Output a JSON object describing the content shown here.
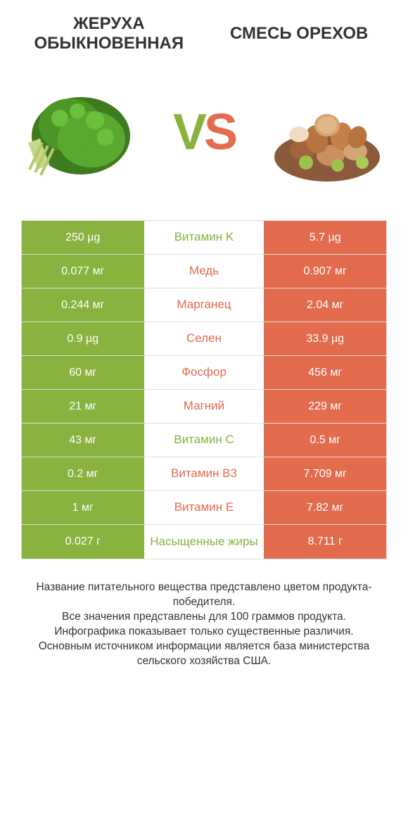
{
  "header": {
    "left_title": "ЖЕРУХА ОБЫКНОВЕННАЯ",
    "right_title": "СМЕСЬ ОРЕХОВ"
  },
  "vs": {
    "v": "V",
    "s": "S"
  },
  "colors": {
    "green": "#8ab23f",
    "orange": "#e36b4e",
    "border": "#dddddd",
    "text": "#333333",
    "white": "#ffffff"
  },
  "table": {
    "rows": [
      {
        "left": "250 µg",
        "mid": "Витамин K",
        "right": "5.7 µg",
        "winner": "left"
      },
      {
        "left": "0.077 мг",
        "mid": "Медь",
        "right": "0.907 мг",
        "winner": "right"
      },
      {
        "left": "0.244 мг",
        "mid": "Марганец",
        "right": "2.04 мг",
        "winner": "right"
      },
      {
        "left": "0.9 µg",
        "mid": "Селен",
        "right": "33.9 µg",
        "winner": "right"
      },
      {
        "left": "60 мг",
        "mid": "Фосфор",
        "right": "456 мг",
        "winner": "right"
      },
      {
        "left": "21 мг",
        "mid": "Магний",
        "right": "229 мг",
        "winner": "right"
      },
      {
        "left": "43 мг",
        "mid": "Витамин C",
        "right": "0.5 мг",
        "winner": "left"
      },
      {
        "left": "0.2 мг",
        "mid": "Витамин B3",
        "right": "7.709 мг",
        "winner": "right"
      },
      {
        "left": "1 мг",
        "mid": "Витамин E",
        "right": "7.82 мг",
        "winner": "right"
      },
      {
        "left": "0.027 г",
        "mid": "Насыщенные жиры",
        "right": "8.711 г",
        "winner": "left"
      }
    ]
  },
  "footer": {
    "line1": "Название питательного вещества представлено цветом продукта-победителя.",
    "line2": "Все значения представлены для 100 граммов продукта.",
    "line3": "Инфографика показывает только существенные различия.",
    "line4": "Основным источником информации является база министерства сельского хозяйства США."
  }
}
